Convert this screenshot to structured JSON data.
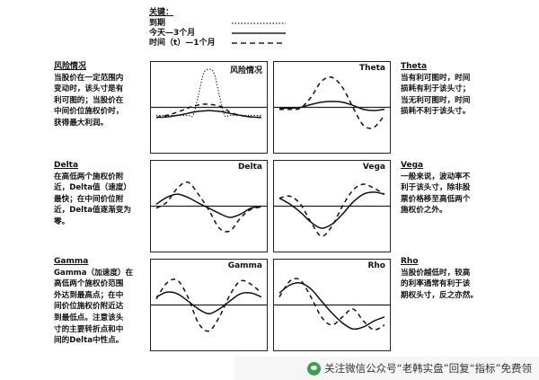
{
  "legend": {
    "title": "关键：",
    "items": [
      {
        "label": "到期",
        "style": "dotted"
      },
      {
        "label": "今天—3个月",
        "style": "solid"
      },
      {
        "label": "时间（t）—1个月",
        "style": "dashed"
      }
    ]
  },
  "notes": {
    "risk": {
      "heading": "风险情况",
      "lines": [
        "当股价在一定范围内",
        "变动时，该头寸是有",
        "利可图的；当股价在",
        "中间价位施权价时，",
        "获得最大利润。"
      ]
    },
    "delta": {
      "heading": "Delta",
      "lines": [
        "在高低两个施权价附",
        "近，Delta值（速度）",
        "最快；在中间价位附",
        "近，Delta值逐渐变为",
        "零。"
      ]
    },
    "gamma": {
      "heading": "Gamma",
      "lines": [
        "Gamma（加速度）在",
        "高低两个施权价范围",
        "外达到最高点；在中",
        "间价位施权价附近达",
        "到最低点。注意该头",
        "寸的主要转折点和中",
        "间的Delta中性点。"
      ]
    },
    "theta": {
      "heading": "Theta",
      "lines": [
        "当有利可图时，时间",
        "损耗有利于该头寸；",
        "当无利可图时，时间",
        "损耗不利于该头寸。"
      ]
    },
    "vega": {
      "heading": "Vega",
      "lines": [
        "一般来说，波动率不",
        "利于该头寸，除非股",
        "票价格移至高低两个",
        "施权价之外。"
      ]
    },
    "rho": {
      "heading": "Rho",
      "lines": [
        "当股价越低时，较高",
        "的利率通常有利于该",
        "期权头寸，反之亦然。"
      ]
    }
  },
  "chart_data": [
    {
      "type": "line",
      "title": "风险情况",
      "ylim": [
        -1,
        1
      ],
      "x": [
        0,
        0.1,
        0.2,
        0.3,
        0.35,
        0.4,
        0.45,
        0.5,
        0.55,
        0.6,
        0.65,
        0.7,
        0.8,
        0.9,
        1.0
      ],
      "series": [
        {
          "style": "dotted",
          "values": [
            -0.2,
            -0.2,
            -0.2,
            -0.2,
            -0.2,
            0.3,
            0.85,
            0.95,
            0.85,
            0.3,
            -0.2,
            -0.2,
            -0.2,
            -0.2,
            -0.2
          ]
        },
        {
          "style": "solid",
          "values": [
            -0.25,
            -0.24,
            -0.2,
            -0.15,
            -0.12,
            -0.1,
            -0.09,
            -0.08,
            -0.09,
            -0.1,
            -0.12,
            -0.15,
            -0.2,
            -0.24,
            -0.25
          ]
        },
        {
          "style": "dashed",
          "values": [
            -0.25,
            -0.2,
            -0.12,
            -0.02,
            0.03,
            0.06,
            0.08,
            0.08,
            0.06,
            0.03,
            -0.02,
            -0.12,
            -0.2,
            -0.24,
            -0.25
          ]
        }
      ]
    },
    {
      "type": "line",
      "title": "Theta",
      "ylim": [
        -1,
        1
      ],
      "x": [
        0,
        0.1,
        0.2,
        0.3,
        0.4,
        0.5,
        0.6,
        0.7,
        0.8,
        0.9,
        1.0
      ],
      "series": [
        {
          "style": "solid",
          "values": [
            -0.02,
            -0.02,
            0.0,
            0.07,
            0.13,
            0.15,
            0.13,
            0.05,
            -0.05,
            -0.08,
            -0.05
          ]
        },
        {
          "style": "dashed",
          "values": [
            -0.05,
            -0.05,
            -0.02,
            0.25,
            0.65,
            0.75,
            0.5,
            0.0,
            -0.45,
            -0.5,
            -0.2
          ]
        }
      ]
    },
    {
      "type": "line",
      "title": "Delta",
      "ylim": [
        -1,
        1
      ],
      "x": [
        0,
        0.1,
        0.2,
        0.3,
        0.4,
        0.5,
        0.6,
        0.7,
        0.8,
        0.9,
        1.0
      ],
      "series": [
        {
          "style": "solid",
          "values": [
            0.05,
            0.22,
            0.3,
            0.22,
            0.08,
            -0.05,
            -0.18,
            -0.28,
            -0.2,
            -0.05,
            0.0
          ]
        },
        {
          "style": "dashed",
          "values": [
            -0.05,
            0.1,
            0.45,
            0.6,
            0.3,
            -0.1,
            -0.55,
            -0.62,
            -0.3,
            -0.08,
            -0.02
          ]
        }
      ]
    },
    {
      "type": "line",
      "title": "Vega",
      "ylim": [
        -1,
        1
      ],
      "x": [
        0,
        0.1,
        0.2,
        0.3,
        0.4,
        0.5,
        0.6,
        0.7,
        0.8,
        0.9,
        1.0
      ],
      "series": [
        {
          "style": "solid",
          "values": [
            0.2,
            0.05,
            -0.15,
            -0.4,
            -0.55,
            -0.45,
            -0.2,
            0.1,
            0.3,
            0.35,
            0.3
          ]
        },
        {
          "style": "dashed",
          "values": [
            0.2,
            0.25,
            0.05,
            -0.4,
            -0.75,
            -0.5,
            0.0,
            0.4,
            0.55,
            0.45,
            0.3
          ]
        }
      ]
    },
    {
      "type": "line",
      "title": "Gamma",
      "ylim": [
        -1,
        1
      ],
      "x": [
        0,
        0.1,
        0.2,
        0.3,
        0.4,
        0.5,
        0.6,
        0.7,
        0.8,
        0.9,
        1.0
      ],
      "series": [
        {
          "style": "solid",
          "values": [
            0.2,
            0.32,
            0.28,
            0.1,
            -0.1,
            -0.22,
            -0.1,
            0.1,
            0.28,
            0.3,
            0.2
          ]
        },
        {
          "style": "dashed",
          "values": [
            0.15,
            0.55,
            0.62,
            0.2,
            -0.45,
            -0.65,
            -0.3,
            0.25,
            0.6,
            0.52,
            0.3
          ]
        }
      ]
    },
    {
      "type": "line",
      "title": "Rho",
      "ylim": [
        -1,
        1
      ],
      "x": [
        0,
        0.1,
        0.2,
        0.3,
        0.4,
        0.5,
        0.6,
        0.7,
        0.8,
        0.9,
        1.0
      ],
      "series": [
        {
          "style": "solid",
          "values": [
            0.3,
            0.5,
            0.55,
            0.4,
            0.1,
            -0.2,
            -0.45,
            -0.6,
            -0.55,
            -0.4,
            -0.3
          ]
        },
        {
          "style": "dashed",
          "values": [
            0.2,
            0.6,
            0.62,
            0.2,
            -0.3,
            -0.5,
            -0.3,
            -0.1,
            -0.4,
            -0.62,
            -0.5
          ]
        }
      ]
    }
  ],
  "watermark": {
    "text": "关注微信公众号“老韩实盘”回复“指标”免费领"
  }
}
